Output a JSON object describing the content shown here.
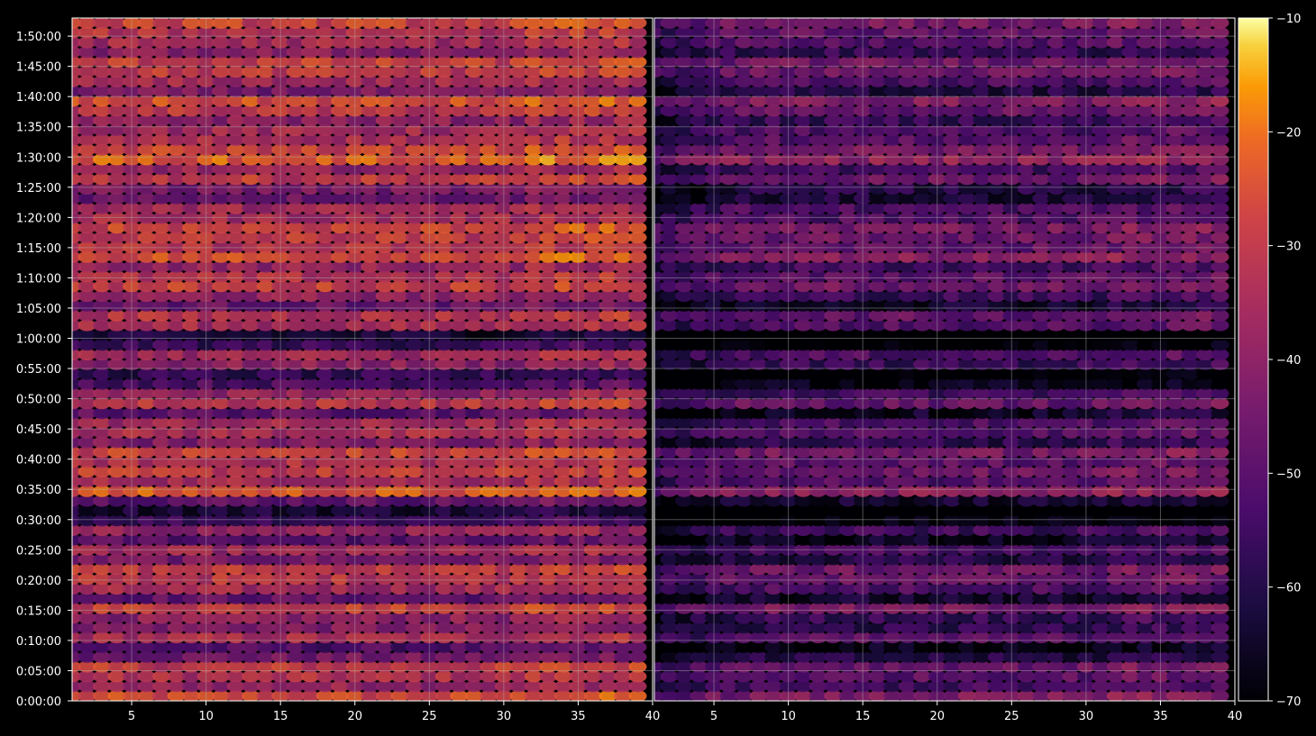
{
  "chart_data": {
    "type": "heatmap",
    "title": "",
    "xlabel": "",
    "ylabel": "",
    "grid": true,
    "colormap": "inferno",
    "background": "#000000",
    "panels": [
      {
        "name": "",
        "xlim": [
          1,
          40
        ],
        "x_ticks": [
          "5",
          "10",
          "15",
          "20",
          "25",
          "30",
          "35",
          "40"
        ],
        "x_tick_values": [
          5,
          10,
          15,
          20,
          25,
          30,
          35,
          40
        ]
      },
      {
        "name": "",
        "xlim": [
          1,
          40
        ],
        "x_ticks": [
          "5",
          "10",
          "15",
          "20",
          "25",
          "30",
          "35",
          "40"
        ],
        "x_tick_values": [
          5,
          10,
          15,
          20,
          25,
          30,
          35,
          40
        ]
      }
    ],
    "y_range_seconds": [
      0,
      6780
    ],
    "y_ticks": [
      "0:00:00",
      "0:05:00",
      "0:10:00",
      "0:15:00",
      "0:20:00",
      "0:25:00",
      "0:30:00",
      "0:35:00",
      "0:40:00",
      "0:45:00",
      "0:50:00",
      "0:55:00",
      "1:00:00",
      "1:05:00",
      "1:10:00",
      "1:15:00",
      "1:20:00",
      "1:25:00",
      "1:30:00",
      "1:35:00",
      "1:40:00",
      "1:45:00",
      "1:50:00"
    ],
    "y_tick_seconds": [
      0,
      300,
      600,
      900,
      1200,
      1500,
      1800,
      2100,
      2400,
      2700,
      3000,
      3300,
      3600,
      3900,
      4200,
      4500,
      4800,
      5100,
      5400,
      5700,
      6000,
      6300,
      6600
    ],
    "colorbar": {
      "range": [
        -70,
        -10
      ],
      "ticks": [
        "−70",
        "−60",
        "−50",
        "−40",
        "−30",
        "−20",
        "−10"
      ],
      "tick_values": [
        -70,
        -60,
        -50,
        -40,
        -30,
        -20,
        -10
      ]
    },
    "channels": 39,
    "time_rows": 70,
    "row_level_profile_db": [
      -27,
      -38,
      -33,
      -30,
      -45,
      -52,
      -34,
      -42,
      -40,
      -28,
      -48,
      -36,
      -31,
      -30,
      -44,
      -37,
      -50,
      -39,
      -55,
      -62,
      -48,
      -24,
      -35,
      -30,
      -33,
      -28,
      -42,
      -34,
      -36,
      -49,
      -31,
      -38,
      -52,
      -58,
      -40,
      -36,
      -56,
      -63,
      -35,
      -32,
      -47,
      -39,
      -29,
      -33,
      -38,
      -25,
      -32,
      -30,
      -27,
      -35,
      -36,
      -46,
      -44,
      -30,
      -38,
      -23,
      -28,
      -34,
      -36,
      -40,
      -31,
      -26,
      -44,
      -36,
      -30,
      -29,
      -41,
      -35,
      -32,
      -28
    ],
    "panel_offset_db": [
      0,
      -16
    ]
  }
}
